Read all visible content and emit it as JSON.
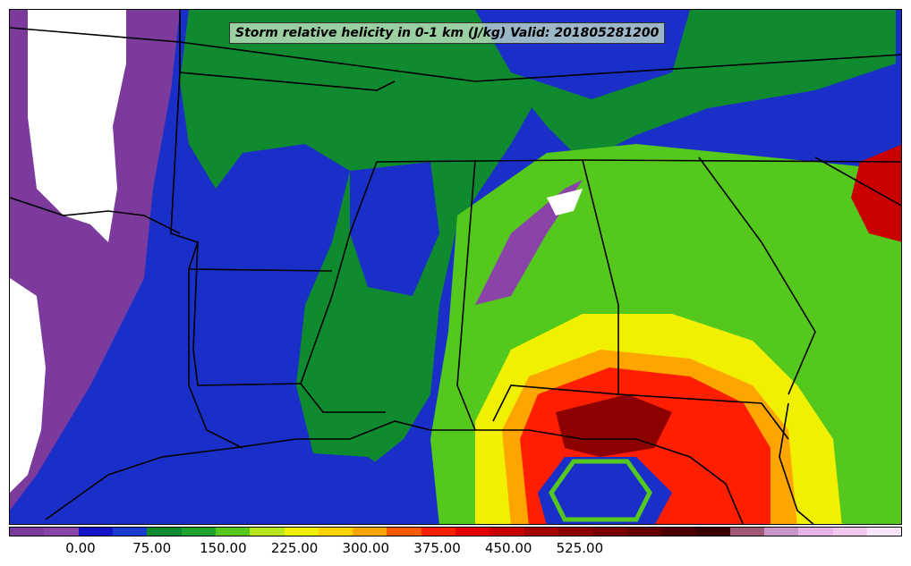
{
  "title": "Storm relative helicity in 0-1 km (J/kg) Valid: 201805281200",
  "colorbar": {
    "colors": [
      "#7b3a9c",
      "#8a44a8",
      "#1414c8",
      "#1a3cd0",
      "#0f8a2e",
      "#1fa22e",
      "#55c81e",
      "#b8e61e",
      "#f0f000",
      "#ffd200",
      "#ffa500",
      "#ff5a00",
      "#ff1e00",
      "#e60000",
      "#c80000",
      "#a50000",
      "#8c0000",
      "#780000",
      "#640000",
      "#500000",
      "#3c0000",
      "#a05a78",
      "#c896c8",
      "#e6b4e6",
      "#f0c8f0",
      "#fae6fa"
    ],
    "tick_labels": [
      "0.00",
      "75.00",
      "150.00",
      "225.00",
      "300.00",
      "375.00",
      "450.00",
      "525.00"
    ]
  }
}
